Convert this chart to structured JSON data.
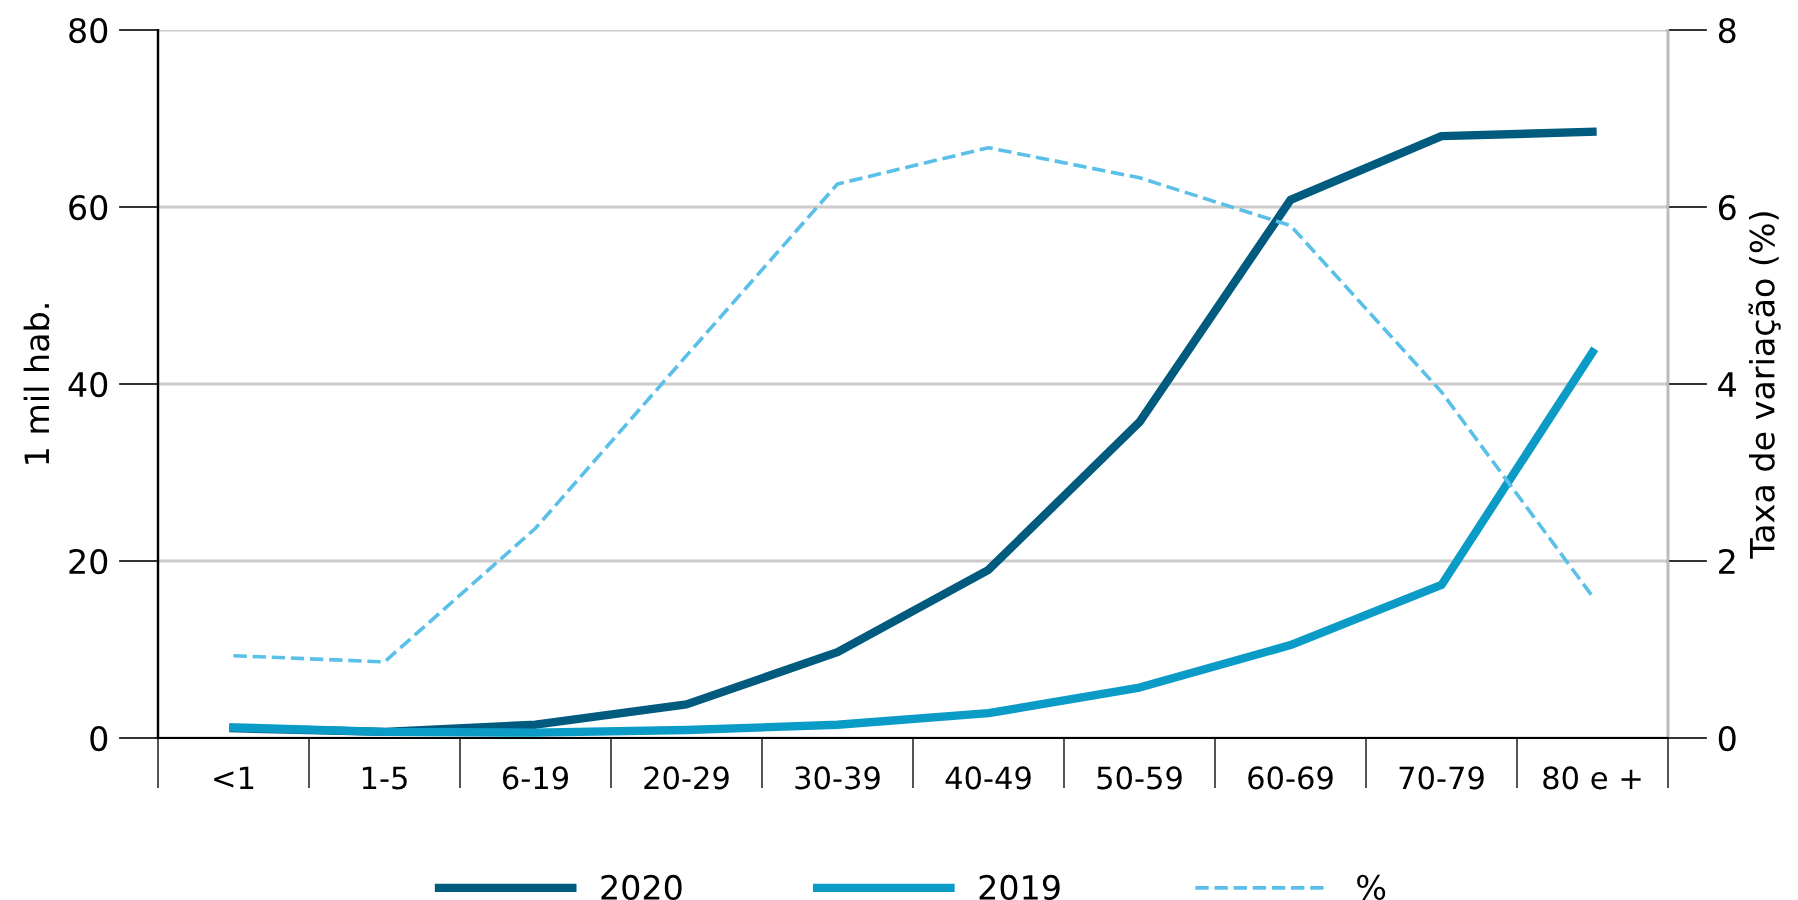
{
  "chart_data": {
    "type": "line",
    "ylabel": "1 mil hab.",
    "y2label": "Taxa de variação (%)",
    "categories": [
      "<1",
      "1-5",
      "6-19",
      "20-29",
      "30-39",
      "40-49",
      "50-59",
      "60-69",
      "70-79",
      "80 e +"
    ],
    "series": [
      {
        "name": "2020",
        "color": "#005b7f",
        "values": [
          1.1,
          0.7,
          1.5,
          3.8,
          9.7,
          19,
          35.7,
          60.8,
          68,
          68.5
        ]
      },
      {
        "name": "2019",
        "color": "#0a9bc7",
        "values": [
          1.2,
          0.7,
          0.6,
          0.9,
          1.5,
          2.8,
          5.7,
          10.5,
          17.3,
          43.6
        ]
      },
      {
        "name": "%",
        "color": "#5bc0e8",
        "axis": "y2",
        "line_style": "dashed",
        "values": [
          0.93,
          0.86,
          2.37,
          4.32,
          6.26,
          6.67,
          6.33,
          5.79,
          3.91,
          1.6
        ]
      }
    ],
    "ylim": [
      0,
      80
    ],
    "yticks": [
      0,
      20,
      40,
      60,
      80
    ],
    "y2lim": [
      0,
      8
    ],
    "y2ticks": [
      0,
      2,
      4,
      6,
      8
    ],
    "grid": "y",
    "legend": "bottom",
    "line_style": "solid",
    "marker": "none"
  }
}
